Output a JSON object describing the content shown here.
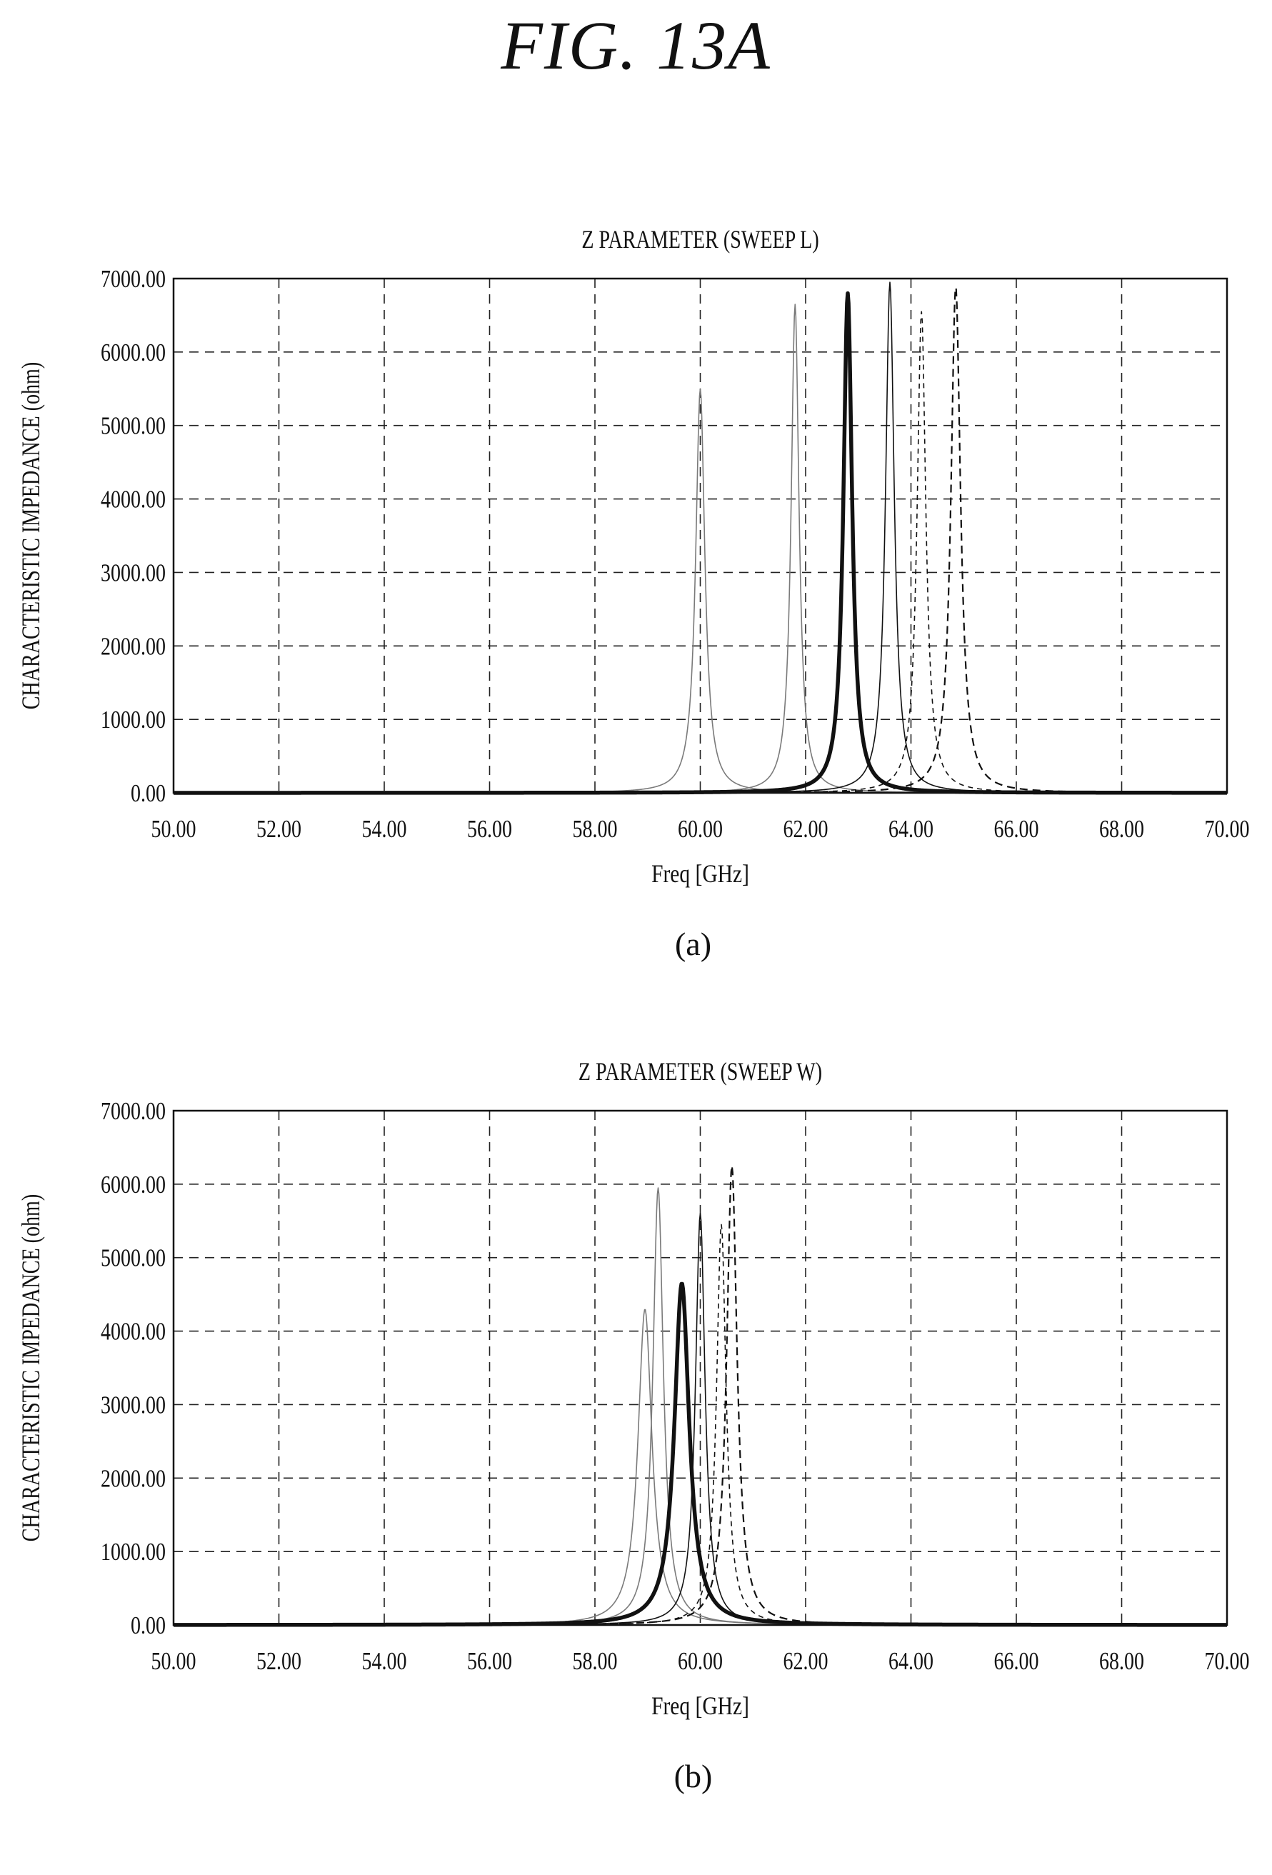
{
  "figure_title": "FIG. 13A",
  "chart_data": [
    {
      "type": "line",
      "title": "Z PARAMETER (SWEEP L)",
      "xlabel": "Freq [GHz]",
      "ylabel": "CHARACTERISTIC IMPEDANCE (ohm)",
      "xlim": [
        50,
        70
      ],
      "ylim": [
        0,
        7000
      ],
      "xticks": [
        "50.00",
        "52.00",
        "54.00",
        "56.00",
        "58.00",
        "60.00",
        "62.00",
        "64.00",
        "66.00",
        "68.00",
        "70.00"
      ],
      "yticks": [
        "0.00",
        "1000.00",
        "2000.00",
        "3000.00",
        "4000.00",
        "5000.00",
        "6000.00",
        "7000.00"
      ],
      "grid": true,
      "caption": "(a)",
      "series": [
        {
          "f0": 60.0,
          "peak": 5500,
          "gamma": 0.105,
          "style": "thin-gray"
        },
        {
          "f0": 61.8,
          "peak": 6650,
          "gamma": 0.09,
          "style": "thin-gray"
        },
        {
          "f0": 62.8,
          "peak": 6800,
          "gamma": 0.1,
          "style": "bold"
        },
        {
          "f0": 63.6,
          "peak": 6950,
          "gamma": 0.1,
          "style": "thin-black"
        },
        {
          "f0": 64.2,
          "peak": 6550,
          "gamma": 0.1,
          "style": "dashed-thin"
        },
        {
          "f0": 64.85,
          "peak": 6900,
          "gamma": 0.11,
          "style": "dashed"
        }
      ]
    },
    {
      "type": "line",
      "title": "Z PARAMETER (SWEEP W)",
      "xlabel": "Freq [GHz]",
      "ylabel": "CHARACTERISTIC IMPEDANCE (ohm)",
      "xlim": [
        50,
        70
      ],
      "ylim": [
        0,
        7000
      ],
      "xticks": [
        "50.00",
        "52.00",
        "54.00",
        "56.00",
        "58.00",
        "60.00",
        "62.00",
        "64.00",
        "66.00",
        "68.00",
        "70.00"
      ],
      "yticks": [
        "0.00",
        "1000.00",
        "2000.00",
        "3000.00",
        "4000.00",
        "5000.00",
        "6000.00",
        "7000.00"
      ],
      "grid": true,
      "caption": "(b)",
      "series": [
        {
          "f0": 58.95,
          "peak": 4300,
          "gamma": 0.16,
          "style": "thin-gray"
        },
        {
          "f0": 59.2,
          "peak": 5950,
          "gamma": 0.12,
          "style": "thin-gray"
        },
        {
          "f0": 59.65,
          "peak": 4650,
          "gamma": 0.17,
          "style": "bold"
        },
        {
          "f0": 60.0,
          "peak": 5600,
          "gamma": 0.11,
          "style": "thin-black"
        },
        {
          "f0": 60.4,
          "peak": 5450,
          "gamma": 0.11,
          "style": "dashed-thin"
        },
        {
          "f0": 60.6,
          "peak": 6250,
          "gamma": 0.12,
          "style": "dashed"
        }
      ]
    }
  ],
  "colors": {
    "background": "#ffffff",
    "ink": "#111111",
    "gray_curve": "#7a7a7a",
    "grid": "#222222"
  }
}
